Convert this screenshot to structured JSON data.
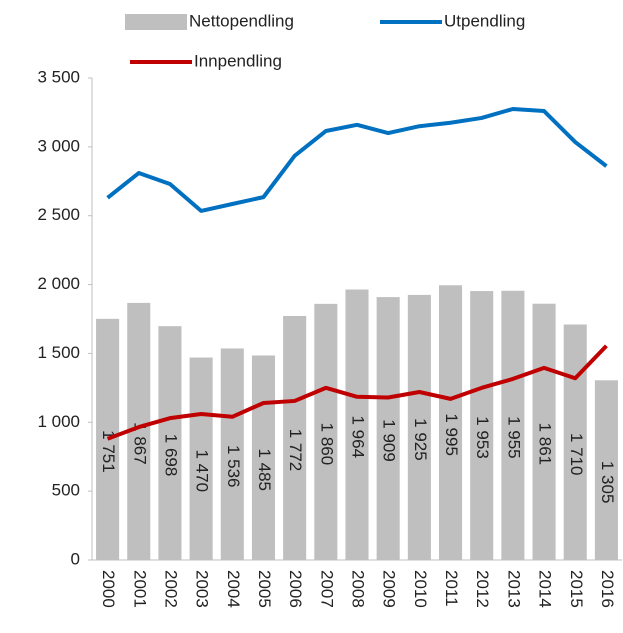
{
  "chart_data": {
    "type": "bar",
    "categories": [
      "2000",
      "2001",
      "2002",
      "2003",
      "2004",
      "2005",
      "2006",
      "2007",
      "2008",
      "2009",
      "2010",
      "2011",
      "2012",
      "2013",
      "2014",
      "2015",
      "2016"
    ],
    "series": [
      {
        "name": "Nettopendling",
        "type": "bar",
        "color": "#bfbfbf",
        "values": [
          1751,
          1867,
          1698,
          1470,
          1536,
          1485,
          1772,
          1860,
          1964,
          1909,
          1925,
          1995,
          1953,
          1955,
          1861,
          1710,
          1305
        ],
        "value_labels": [
          "1 751",
          "1 867",
          "1 698",
          "1 470",
          "1 536",
          "1 485",
          "1 772",
          "1 860",
          "1 964",
          "1 909",
          "1 925",
          "1 995",
          "1 953",
          "1 955",
          "1 861",
          "1 710",
          "1 305"
        ]
      },
      {
        "name": "Utpendling",
        "type": "line",
        "color": "#0070c0",
        "values": [
          2630,
          2810,
          2730,
          2535,
          2585,
          2635,
          2935,
          3115,
          3160,
          3100,
          3150,
          3175,
          3210,
          3275,
          3260,
          3035,
          2860
        ]
      },
      {
        "name": "Innpendling",
        "type": "line",
        "color": "#c00000",
        "values": [
          880,
          965,
          1030,
          1060,
          1040,
          1140,
          1155,
          1250,
          1185,
          1180,
          1220,
          1170,
          1250,
          1315,
          1395,
          1320,
          1555
        ]
      }
    ],
    "ylim": [
      0,
      3500
    ],
    "yticks": [
      0,
      500,
      {
        "value": 1000,
        "label": "1 000"
      },
      {
        "value": 1500,
        "label": "1 500"
      },
      {
        "value": 2000,
        "label": "2 000"
      },
      {
        "value": 2500,
        "label": "2 500"
      },
      {
        "value": 3000,
        "label": "3 000"
      },
      {
        "value": 3500,
        "label": "3 500"
      }
    ],
    "grid": false,
    "legend": "top"
  }
}
